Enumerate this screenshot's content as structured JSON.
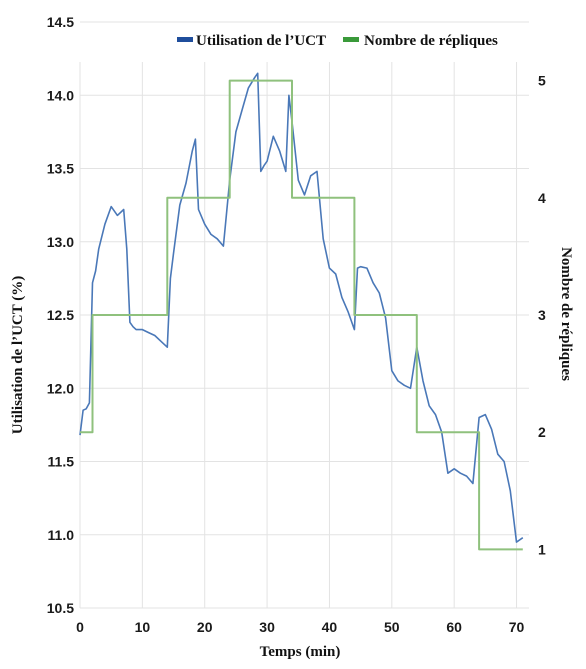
{
  "chart_data": {
    "type": "line",
    "title": "",
    "xlabel": "Temps (min)",
    "ylabel_left": "Utilisation de l’UCT (%)",
    "ylabel_right": "Nombre de répliques",
    "xlim": [
      0,
      72
    ],
    "ylim_left": [
      10.5,
      14.5
    ],
    "ylim_right": [
      0.5,
      5.5
    ],
    "x_ticks": [
      "0",
      "10",
      "20",
      "30",
      "40",
      "50",
      "60",
      "70"
    ],
    "y_left_ticks": [
      "10.5",
      "11.0",
      "11.5",
      "12.0",
      "12.5",
      "13.0",
      "13.5",
      "14.0",
      "14.5"
    ],
    "y_right_ticks": [
      "1",
      "2",
      "3",
      "4",
      "5"
    ],
    "grid": "horizontal",
    "legend_position": "top-right",
    "series": [
      {
        "name": "Utilisation de l’UCT",
        "axis": "left",
        "color": "#4a78b8",
        "legend_color": "#1f4e9c",
        "x": [
          0,
          0.5,
          1,
          1.5,
          2,
          2.5,
          3,
          4,
          5,
          6,
          7,
          7.5,
          8,
          8.5,
          9,
          10,
          11,
          12,
          13,
          14,
          14.5,
          15,
          16,
          17,
          18,
          18.5,
          19,
          20,
          21,
          22,
          23,
          24,
          25,
          26,
          27,
          28,
          28.5,
          29,
          29.5,
          30,
          31,
          32,
          33,
          33.5,
          34,
          35,
          36,
          37,
          38,
          39,
          40,
          41,
          42,
          43,
          44,
          44.5,
          45,
          46,
          47,
          48,
          49,
          50,
          51,
          52,
          53,
          54,
          55,
          56,
          57,
          58,
          59,
          60,
          61,
          62,
          63,
          64,
          65,
          66,
          67,
          68,
          69,
          70,
          71
        ],
        "values": [
          11.68,
          11.85,
          11.86,
          11.9,
          12.72,
          12.8,
          12.95,
          13.12,
          13.24,
          13.18,
          13.22,
          12.95,
          12.45,
          12.42,
          12.4,
          12.4,
          12.38,
          12.36,
          12.32,
          12.28,
          12.75,
          12.92,
          13.25,
          13.4,
          13.62,
          13.7,
          13.22,
          13.12,
          13.05,
          13.02,
          12.97,
          13.42,
          13.75,
          13.9,
          14.05,
          14.12,
          14.15,
          13.48,
          13.52,
          13.55,
          13.72,
          13.62,
          13.48,
          14.0,
          13.82,
          13.42,
          13.32,
          13.45,
          13.48,
          13.02,
          12.82,
          12.78,
          12.62,
          12.52,
          12.4,
          12.82,
          12.83,
          12.82,
          12.72,
          12.65,
          12.48,
          12.12,
          12.05,
          12.02,
          12.0,
          12.28,
          12.05,
          11.88,
          11.82,
          11.7,
          11.42,
          11.45,
          11.42,
          11.4,
          11.35,
          11.8,
          11.82,
          11.72,
          11.55,
          11.5,
          11.3,
          10.95,
          10.98
        ]
      },
      {
        "name": "Nombre de répliques",
        "axis": "right",
        "color": "#8fc17d",
        "legend_color": "#3a9a3a",
        "step": true,
        "x": [
          0,
          2,
          2,
          14,
          14,
          24,
          24,
          34,
          34,
          44,
          44,
          54,
          54,
          64,
          64,
          71
        ],
        "values": [
          2,
          2,
          3,
          3,
          4,
          4,
          5,
          5,
          4,
          4,
          3,
          3,
          2,
          2,
          1,
          1
        ]
      }
    ]
  }
}
